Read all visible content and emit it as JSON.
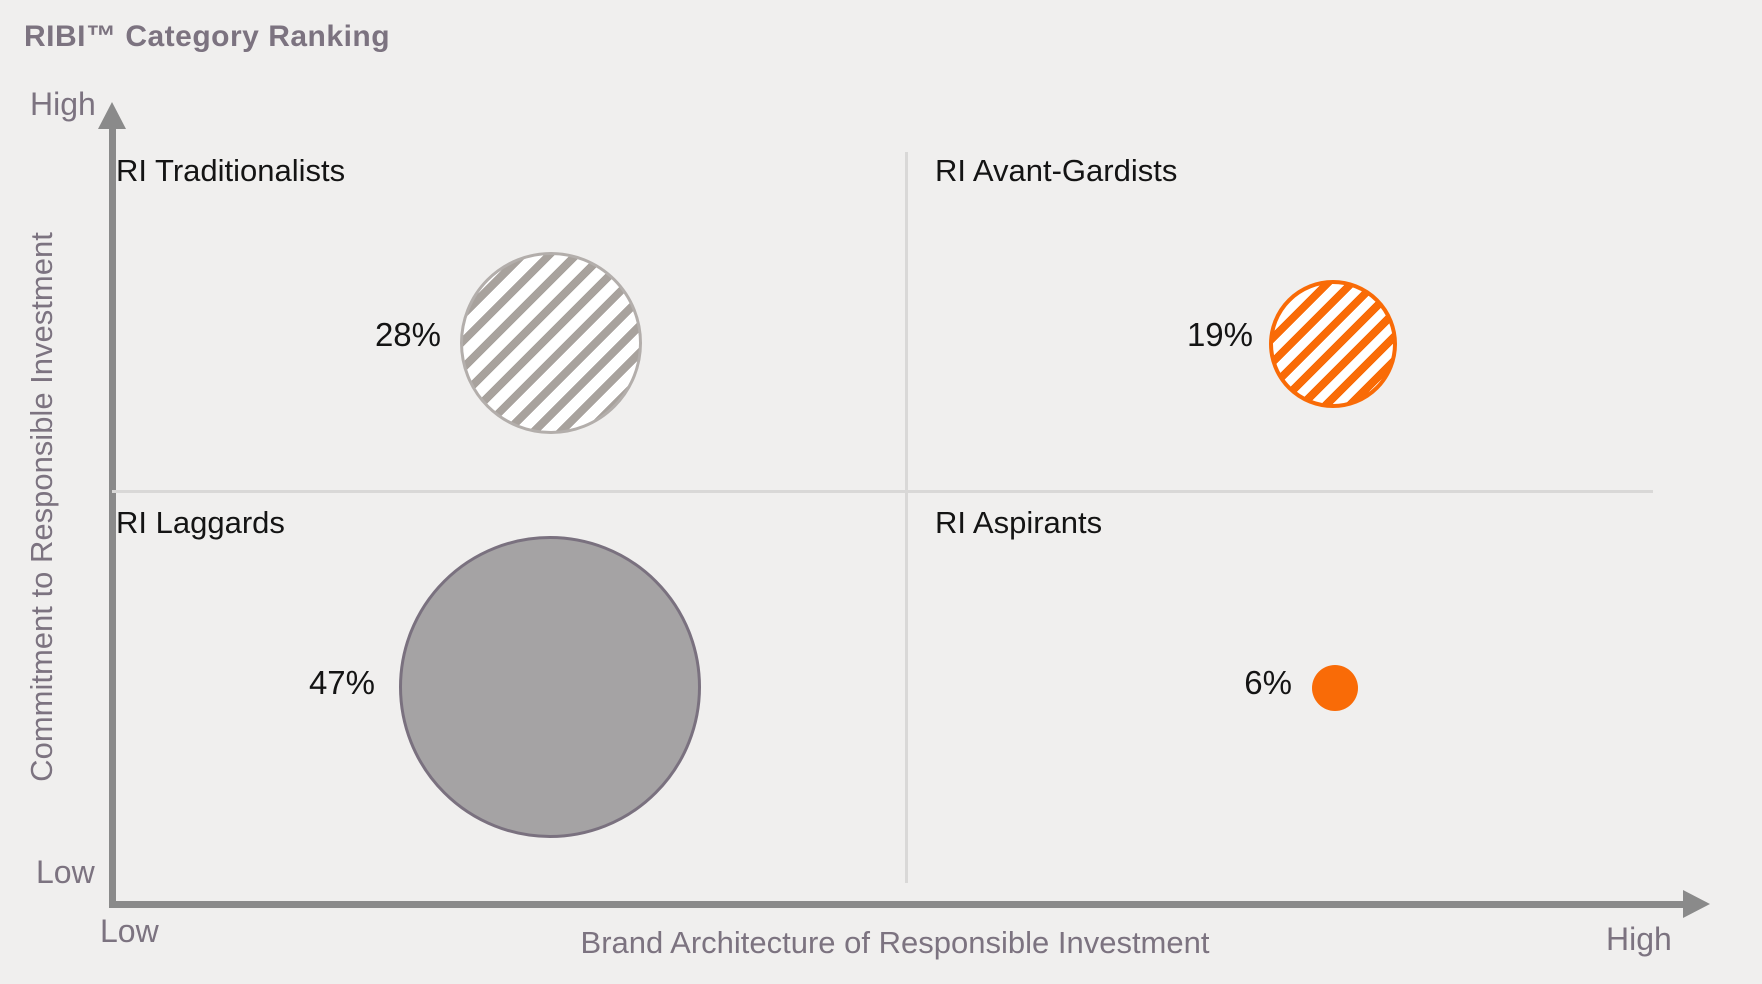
{
  "title": "RIBI™ Category Ranking",
  "axes": {
    "x": {
      "label": "Brand Architecture of Responsible Investment",
      "low": "Low",
      "high": "High"
    },
    "y": {
      "label": "Commitment to Responsible Investment",
      "low": "Low",
      "high": "High"
    }
  },
  "quadrants": [
    {
      "id": "traditionalists",
      "position": "top-left",
      "label": "RI Traditionalists",
      "value": "28%",
      "bubble_style": "gray-diagonal-hatched"
    },
    {
      "id": "avant-gardists",
      "position": "top-right",
      "label": "RI Avant-Gardists",
      "value": "19%",
      "bubble_style": "orange-diagonal-hatched"
    },
    {
      "id": "laggards",
      "position": "bottom-left",
      "label": "RI Laggards",
      "value": "47%",
      "bubble_style": "gray-solid"
    },
    {
      "id": "aspirants",
      "position": "bottom-right",
      "label": "RI Aspirants",
      "value": "6%",
      "bubble_style": "orange-solid"
    }
  ],
  "colors": {
    "orange": "#F96B07",
    "gray_bubble_fill": "#A5A3A4",
    "gray_hatch_stripe": "#A8A29D",
    "gray_bubble_outline": "#7A717F",
    "hatched_gray_outline": "#B3AEAB",
    "axis_gray": "#8A8A8A",
    "divider_gray": "#D9D8D7",
    "heading_purple_gray": "#7C7380",
    "black_text": "#141414",
    "background": "#F0EFEE"
  },
  "chart_data": {
    "type": "scatter",
    "subtype": "quadrant-bubble",
    "title": "RIBI™ Category Ranking",
    "xlabel": "Brand Architecture of Responsible Investment",
    "ylabel": "Commitment to Responsible Investment",
    "x_axis_range": [
      "Low",
      "High"
    ],
    "y_axis_range": [
      "Low",
      "High"
    ],
    "bubble_size_encodes": "share_pct",
    "legend": "none",
    "grid": "quadrant divider lines only",
    "points": [
      {
        "category": "RI Traditionalists",
        "share_pct": 28,
        "brand_architecture": "Low",
        "commitment": "High",
        "marker": "gray diagonal-hatched circle"
      },
      {
        "category": "RI Avant-Gardists",
        "share_pct": 19,
        "brand_architecture": "High",
        "commitment": "High",
        "marker": "orange diagonal-hatched circle"
      },
      {
        "category": "RI Laggards",
        "share_pct": 47,
        "brand_architecture": "Low",
        "commitment": "Low",
        "marker": "solid gray circle"
      },
      {
        "category": "RI Aspirants",
        "share_pct": 6,
        "brand_architecture": "High",
        "commitment": "Low",
        "marker": "solid orange circle"
      }
    ]
  }
}
